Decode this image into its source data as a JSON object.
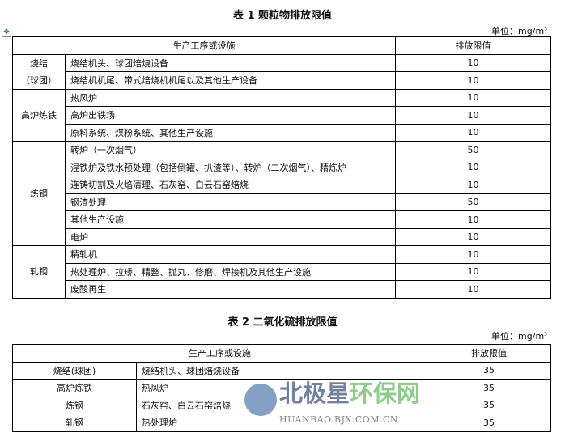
{
  "table1": {
    "title": "表 1 颗粒物排放限值",
    "unit": "单位：mg/m",
    "unit_sup": "3",
    "header": [
      "生产工序或设施",
      "排放限值"
    ],
    "groups": [
      {
        "name": "烧结\n（球团）",
        "rows": [
          [
            "烧结机头、球团焙烧设备",
            "10"
          ],
          [
            "烧结机机尾、带式焙烧机机尾以及其他生产设备",
            "10"
          ]
        ]
      },
      {
        "name": "高炉炼铁",
        "rows": [
          [
            "热风炉",
            "10"
          ],
          [
            "高炉出铁场",
            "10"
          ],
          [
            "原料系统、煤粉系统、其他生产设施",
            "10"
          ]
        ]
      },
      {
        "name": "炼钢",
        "rows": [
          [
            "转炉（一次烟气）",
            "50"
          ],
          [
            "混铁炉及铁水预处理（包括倒罐、扒渣等）、转炉（二次烟气）、精炼炉",
            "10"
          ],
          [
            "连铸切割及火焰清理、石灰窑、白云石窑焙烧",
            "10"
          ],
          [
            "钢渣处理",
            "50"
          ],
          [
            "其他生产设施",
            "10"
          ],
          [
            "电炉",
            "10"
          ]
        ]
      },
      {
        "name": "轧钢",
        "rows": [
          [
            "精轧机",
            "10"
          ],
          [
            "热处理炉、拉矫、精整、抛丸、修磨、焊接机及其他生产设施",
            "10"
          ],
          [
            "废酸再生",
            "10"
          ]
        ]
      }
    ]
  },
  "table2": {
    "title": "表 2 二氧化硫排放限值",
    "unit": "单位：mg/m",
    "unit_sup": "3",
    "header": [
      "生产工序或设施",
      "排放限值"
    ],
    "rows": [
      [
        "烧结(球团)",
        "烧结机头、球团焙烧设备",
        "35"
      ],
      [
        "高炉炼铁",
        "热风炉",
        "35"
      ],
      [
        "炼钢",
        "石灰窑、白云石窑焙烧",
        "35"
      ],
      [
        "轧钢",
        "热处理炉",
        "35"
      ]
    ]
  },
  "watermark": {
    "cn_a": "北极星",
    "cn_b": "环保网",
    "en": "HUANBAO.BJX.COM.CN"
  }
}
